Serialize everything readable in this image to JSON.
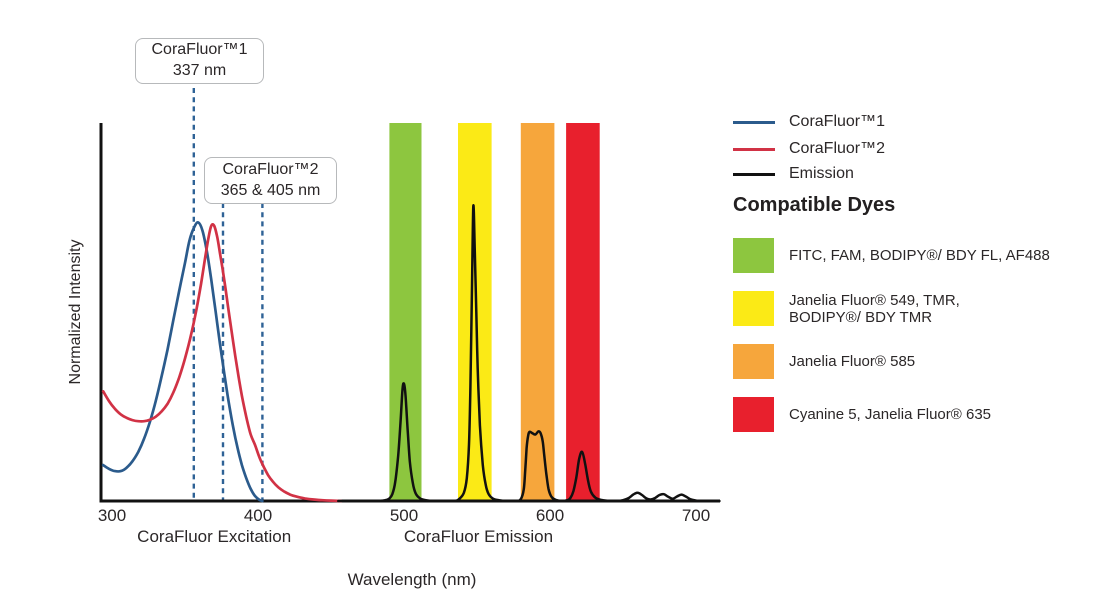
{
  "figure": {
    "background": "#ffffff",
    "text_color": "#2b2728"
  },
  "chart_data": {
    "type": "line",
    "title": "",
    "xlabel": "Wavelength (nm)",
    "ylabel": "Normalized Intensity",
    "x_ticks": [
      300,
      400,
      500,
      600,
      700
    ],
    "xlim": [
      294,
      716
    ],
    "ylim": [
      0,
      1
    ],
    "grid": false,
    "axis_color": "#111111",
    "section_labels": [
      {
        "label": "CoraFluor Excitation",
        "center_nm": 370
      },
      {
        "label": "CoraFluor Emission",
        "center_nm": 551
      }
    ],
    "annotations": [
      {
        "line1": "CoraFluor™1",
        "line2": "337 nm",
        "marker_lines_nm": [
          356
        ],
        "color": "#2e6296"
      },
      {
        "line1": "CoraFluor™2",
        "line2": "365 & 405 nm",
        "marker_lines_nm": [
          376,
          403
        ],
        "color": "#2e6296"
      }
    ],
    "filter_bands": [
      {
        "name": "FITC, FAM, BODIPY®/ BDY FL, AF488",
        "color": "#8dc63f",
        "from_nm": 490,
        "to_nm": 512
      },
      {
        "name": "Janelia Fluor® 549, TMR, BODIPY®/ BDY TMR",
        "color": "#fbea16",
        "from_nm": 537,
        "to_nm": 560
      },
      {
        "name": "Janelia Fluor® 585",
        "color": "#f6a63c",
        "from_nm": 580,
        "to_nm": 603
      },
      {
        "name": "Cyanine 5, Janelia Fluor® 635",
        "color": "#e8202d",
        "from_nm": 611,
        "to_nm": 634
      }
    ],
    "series": [
      {
        "id": "corafluor1-excitation",
        "name": "CoraFluor™1",
        "color": "#2b5b8c",
        "points": [
          [
            294,
            0.095
          ],
          [
            298,
            0.085
          ],
          [
            302,
            0.079
          ],
          [
            306,
            0.079
          ],
          [
            310,
            0.088
          ],
          [
            314,
            0.105
          ],
          [
            318,
            0.13
          ],
          [
            322,
            0.165
          ],
          [
            326,
            0.21
          ],
          [
            330,
            0.265
          ],
          [
            334,
            0.33
          ],
          [
            338,
            0.4
          ],
          [
            342,
            0.478
          ],
          [
            346,
            0.556
          ],
          [
            350,
            0.63
          ],
          [
            353,
            0.688
          ],
          [
            356,
            0.722
          ],
          [
            359,
            0.737
          ],
          [
            362,
            0.715
          ],
          [
            365,
            0.66
          ],
          [
            368,
            0.585
          ],
          [
            371,
            0.5
          ],
          [
            374,
            0.415
          ],
          [
            377,
            0.335
          ],
          [
            380,
            0.26
          ],
          [
            383,
            0.195
          ],
          [
            386,
            0.14
          ],
          [
            389,
            0.095
          ],
          [
            392,
            0.06
          ],
          [
            395,
            0.032
          ],
          [
            398,
            0.013
          ],
          [
            401,
            0.003
          ],
          [
            403,
            0
          ]
        ]
      },
      {
        "id": "corafluor2-excitation",
        "name": "CoraFluor™2",
        "color": "#d13245",
        "points": [
          [
            294,
            0.29
          ],
          [
            298,
            0.264
          ],
          [
            302,
            0.244
          ],
          [
            306,
            0.229
          ],
          [
            310,
            0.22
          ],
          [
            314,
            0.214
          ],
          [
            318,
            0.211
          ],
          [
            322,
            0.211
          ],
          [
            326,
            0.215
          ],
          [
            330,
            0.223
          ],
          [
            334,
            0.237
          ],
          [
            338,
            0.257
          ],
          [
            342,
            0.287
          ],
          [
            346,
            0.327
          ],
          [
            350,
            0.377
          ],
          [
            354,
            0.437
          ],
          [
            358,
            0.51
          ],
          [
            361,
            0.575
          ],
          [
            364,
            0.648
          ],
          [
            366,
            0.695
          ],
          [
            368,
            0.728
          ],
          [
            370,
            0.728
          ],
          [
            372,
            0.7
          ],
          [
            374,
            0.655
          ],
          [
            377,
            0.582
          ],
          [
            380,
            0.5
          ],
          [
            383,
            0.42
          ],
          [
            386,
            0.345
          ],
          [
            389,
            0.278
          ],
          [
            392,
            0.222
          ],
          [
            395,
            0.176
          ],
          [
            398,
            0.148
          ],
          [
            401,
            0.115
          ],
          [
            404,
            0.09
          ],
          [
            407,
            0.068
          ],
          [
            410,
            0.052
          ],
          [
            414,
            0.036
          ],
          [
            418,
            0.025
          ],
          [
            422,
            0.017
          ],
          [
            427,
            0.011
          ],
          [
            432,
            0.007
          ],
          [
            438,
            0.004
          ],
          [
            444,
            0.002
          ],
          [
            450,
            0.001
          ],
          [
            457,
            0
          ]
        ]
      },
      {
        "id": "emission-spectra",
        "name": "Emission",
        "color": "#111111",
        "points": [
          [
            455,
            0
          ],
          [
            480,
            0
          ],
          [
            487,
            0.002
          ],
          [
            490,
            0.007
          ],
          [
            492,
            0.018
          ],
          [
            494,
            0.05
          ],
          [
            496,
            0.12
          ],
          [
            497.5,
            0.2
          ],
          [
            499,
            0.295
          ],
          [
            500,
            0.31
          ],
          [
            501,
            0.28
          ],
          [
            502.5,
            0.19
          ],
          [
            504,
            0.105
          ],
          [
            506,
            0.048
          ],
          [
            508,
            0.02
          ],
          [
            511,
            0.007
          ],
          [
            515,
            0.002
          ],
          [
            521,
            0
          ],
          [
            534,
            0
          ],
          [
            538,
            0.006
          ],
          [
            541,
            0.022
          ],
          [
            543,
            0.06
          ],
          [
            544.5,
            0.15
          ],
          [
            545.5,
            0.3
          ],
          [
            546.5,
            0.55
          ],
          [
            547.5,
            0.78
          ],
          [
            548.5,
            0.66
          ],
          [
            549.5,
            0.5
          ],
          [
            550.5,
            0.35
          ],
          [
            552,
            0.2
          ],
          [
            554,
            0.095
          ],
          [
            556,
            0.042
          ],
          [
            558,
            0.018
          ],
          [
            561,
            0.006
          ],
          [
            565,
            0.002
          ],
          [
            570,
            0
          ],
          [
            577,
            0
          ],
          [
            580,
            0.005
          ],
          [
            582,
            0.03
          ],
          [
            583,
            0.08
          ],
          [
            584,
            0.14
          ],
          [
            585,
            0.172
          ],
          [
            586,
            0.183
          ],
          [
            588,
            0.179
          ],
          [
            590,
            0.176
          ],
          [
            592,
            0.184
          ],
          [
            593.5,
            0.18
          ],
          [
            595,
            0.158
          ],
          [
            596,
            0.122
          ],
          [
            597.5,
            0.072
          ],
          [
            599,
            0.032
          ],
          [
            601,
            0.011
          ],
          [
            604,
            0.003
          ],
          [
            608,
            0
          ],
          [
            612,
            0.002
          ],
          [
            614,
            0.008
          ],
          [
            616,
            0.026
          ],
          [
            618,
            0.062
          ],
          [
            620,
            0.112
          ],
          [
            622,
            0.13
          ],
          [
            624,
            0.1
          ],
          [
            626,
            0.055
          ],
          [
            628,
            0.025
          ],
          [
            631,
            0.009
          ],
          [
            635,
            0.003
          ],
          [
            641,
            0
          ],
          [
            646,
            0
          ],
          [
            650,
            0.002
          ],
          [
            654,
            0.008
          ],
          [
            657,
            0.017
          ],
          [
            660,
            0.022
          ],
          [
            663,
            0.016
          ],
          [
            666,
            0.007
          ],
          [
            669,
            0.004
          ],
          [
            672,
            0.008
          ],
          [
            675,
            0.016
          ],
          [
            678,
            0.018
          ],
          [
            681,
            0.011
          ],
          [
            684,
            0.006
          ],
          [
            687,
            0.012
          ],
          [
            690,
            0.017
          ],
          [
            693,
            0.012
          ],
          [
            696,
            0.005
          ],
          [
            699,
            0.002
          ],
          [
            703,
            0
          ],
          [
            716,
            0
          ]
        ]
      }
    ]
  },
  "legend": {
    "items": [
      {
        "label": "CoraFluor™1",
        "color": "#2b5b8c"
      },
      {
        "label": "CoraFluor™2",
        "color": "#d13245"
      },
      {
        "label": "Emission",
        "color": "#111111"
      }
    ]
  },
  "compatible_dyes": {
    "heading": "Compatible Dyes",
    "items": [
      {
        "label": "FITC, FAM, BODIPY®/ BDY FL, AF488",
        "color": "#8dc63f"
      },
      {
        "label": "Janelia Fluor® 549, TMR,\nBODIPY®/ BDY TMR",
        "color": "#fbea16"
      },
      {
        "label": "Janelia Fluor® 585",
        "color": "#f6a63c"
      },
      {
        "label": "Cyanine 5, Janelia Fluor® 635",
        "color": "#e8202d"
      }
    ]
  }
}
